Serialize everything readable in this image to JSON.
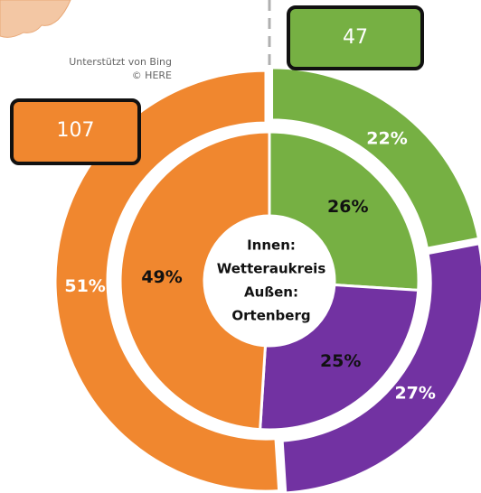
{
  "chart_data": {
    "type": "donut",
    "colors": [
      "#76b043",
      "#7232a2",
      "#f0872f"
    ],
    "series": [
      {
        "values": [
          26,
          25,
          49
        ],
        "value_labels": [
          "26%",
          "25%",
          "49%"
        ]
      },
      {
        "values": [
          22,
          27,
          51
        ],
        "value_labels": [
          "22%",
          "27%",
          "51%"
        ]
      }
    ],
    "center_label": [
      "Innen:",
      "Wetteraukreis",
      "Außen:",
      "Ortenberg"
    ],
    "annotations": [
      {
        "text": "107",
        "color": "#f0872f"
      },
      {
        "text": "47",
        "color": "#76b043"
      }
    ],
    "attribution": [
      "Unterstützt von Bing",
      "© HERE"
    ]
  }
}
